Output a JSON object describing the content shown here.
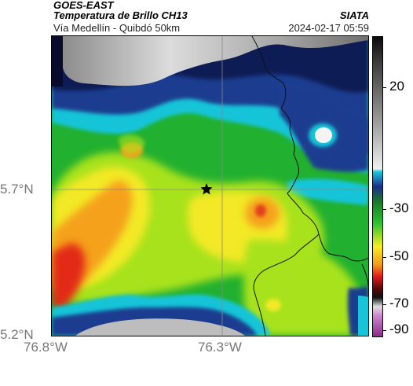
{
  "header": {
    "satellite": "GOES-EAST",
    "product": "Temperatura de Brillo CH13",
    "subtitle": "Vía Medellín - Quibdó 50km",
    "organization": "SIATA",
    "datetime": "2024-02-17 05:59"
  },
  "map": {
    "lon_ticks": [
      "76.8°W",
      "76.3°W"
    ],
    "lat_ticks": [
      "5.7°N",
      "5.2°N"
    ],
    "marker_icon": "star-icon"
  },
  "colorbar": {
    "labels": [
      "20",
      "-30",
      "-50",
      "-70",
      "-90"
    ]
  },
  "colors": {
    "warm": "#e21a1a",
    "mid": "#f6ee22",
    "cool": "#1faa2a",
    "cold": "#1a2f8a",
    "cloud_free": "#d0d0d0"
  }
}
